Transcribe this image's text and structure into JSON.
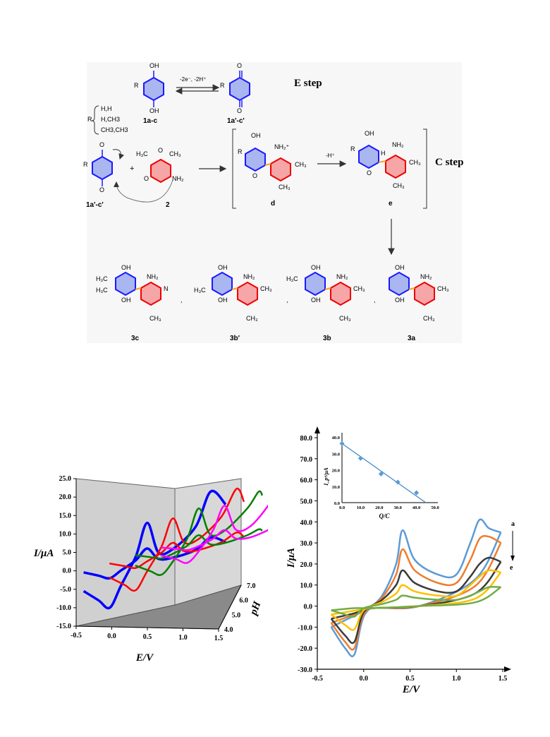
{
  "scheme": {
    "e_step_label": "E step",
    "c_step_label": "C step",
    "arrow_label_e": "-2e⁻, -2H⁺",
    "arrow_label_c": "-H⁺",
    "r_group_prefix": "R",
    "r_groups": [
      "H,H",
      "H,CH3",
      "CH3,CH3"
    ],
    "compound_labels": {
      "c1ac": "1a-c",
      "c1ac_prime": "1a'-c'",
      "c1ac_prime_2": "1a'-c'",
      "c2": "2",
      "cd": "d",
      "ce": "e",
      "c3c": "3c",
      "c3b_prime": "3b'",
      "c3b": "3b",
      "c3a": "3a"
    },
    "atoms": {
      "oh": "OH",
      "o": "O",
      "r": "R",
      "nh2": "NH₂",
      "nh2_plus": "NH₂⁺",
      "h3c": "H₃C",
      "ch3": "CH₃",
      "n": "N",
      "h": "H",
      "plus": "+",
      "sep": ","
    }
  },
  "chart_data": [
    {
      "type": "line",
      "xlabel": "E/V",
      "ylabel": "I/μA",
      "zlabel": "pH",
      "xlim": [
        -0.5,
        1.5
      ],
      "ylim": [
        -15.0,
        25.0
      ],
      "zlim": [
        4.0,
        7.0
      ],
      "x_ticks": [
        "-0.5",
        "0.0",
        "0.5",
        "1.0",
        "1.5"
      ],
      "y_ticks": [
        "25.0",
        "20.0",
        "15.0",
        "10.0",
        "5.0",
        "0.0",
        "-5.0",
        "-10.0",
        "-15.0"
      ],
      "z_ticks": [
        "7.0",
        "6.0",
        "5.0",
        "4.0"
      ],
      "series": [
        {
          "color": "#0000ff",
          "z": 4.0,
          "x": [
            -0.4,
            -0.2,
            -0.05,
            0.1,
            0.3,
            0.45,
            0.6,
            0.8,
            1.1,
            1.3,
            1.5
          ],
          "y": [
            -5.5,
            -8.0,
            -10.0,
            -4.0,
            4.0,
            13.0,
            5.0,
            6.0,
            12.0,
            21.5,
            18.0
          ]
        },
        {
          "color": "#ff0000",
          "z": 5.0,
          "x": [
            -0.3,
            -0.1,
            0.05,
            0.2,
            0.4,
            0.55,
            0.7,
            0.9,
            1.2,
            1.4,
            1.5
          ],
          "y": [
            -3.5,
            -5.5,
            -7.0,
            -2.0,
            5.0,
            12.5,
            6.0,
            7.0,
            13.0,
            20.5,
            17.0
          ]
        },
        {
          "color": "#008000",
          "z": 6.0,
          "x": [
            -0.2,
            0.0,
            0.15,
            0.3,
            0.5,
            0.65,
            0.8,
            1.0,
            1.3,
            1.45,
            1.5
          ],
          "y": [
            -2.0,
            -3.5,
            -4.5,
            -1.0,
            5.5,
            13.5,
            6.5,
            7.5,
            13.5,
            18.0,
            17.0
          ]
        },
        {
          "color": "#ff00ff",
          "z": 7.0,
          "x": [
            -0.1,
            0.1,
            0.25,
            0.4,
            0.6,
            0.75,
            0.9,
            1.1,
            1.35,
            1.45,
            1.5
          ],
          "y": [
            -1.0,
            -2.0,
            -3.0,
            0.0,
            6.0,
            12.5,
            6.0,
            7.0,
            13.0,
            17.0,
            16.0
          ]
        }
      ]
    },
    {
      "type": "line",
      "xlabel": "E/V",
      "ylabel": "I/μA",
      "xlim": [
        -0.5,
        1.5
      ],
      "ylim": [
        -30.0,
        80.0
      ],
      "x_ticks": [
        "-0.5",
        "0.0",
        "0.5",
        "1.0",
        "1.5"
      ],
      "y_ticks": [
        "80.0",
        "70.0",
        "60.0",
        "50.0",
        "40.0",
        "30.0",
        "20.0",
        "10.0",
        "0.0",
        "-10.0",
        "-20.0",
        "-30.0"
      ],
      "curve_labels": [
        "a",
        "e"
      ],
      "series": [
        {
          "color": "#5b9bd5",
          "x": [
            -0.35,
            -0.2,
            -0.1,
            0.0,
            0.2,
            0.35,
            0.42,
            0.55,
            0.8,
            1.0,
            1.15,
            1.25,
            1.35,
            1.48
          ],
          "y": [
            -10.0,
            -20.0,
            -23.0,
            -5.0,
            5.0,
            20.0,
            36.0,
            22.0,
            15.0,
            15.0,
            30.0,
            41.0,
            37.0,
            35.0
          ]
        },
        {
          "color": "#ed7d31",
          "x": [
            -0.35,
            -0.2,
            -0.1,
            0.0,
            0.2,
            0.35,
            0.42,
            0.55,
            0.8,
            1.0,
            1.15,
            1.25,
            1.35,
            1.48
          ],
          "y": [
            -8.0,
            -17.0,
            -20.0,
            -4.0,
            4.0,
            15.0,
            27.0,
            17.0,
            11.0,
            11.0,
            22.0,
            32.0,
            33.0,
            30.0
          ]
        },
        {
          "color": "#3b3b3b",
          "x": [
            -0.35,
            -0.2,
            -0.1,
            0.0,
            0.2,
            0.35,
            0.42,
            0.55,
            0.8,
            1.0,
            1.15,
            1.25,
            1.35,
            1.48
          ],
          "y": [
            -6.0,
            -14.0,
            -17.0,
            -3.0,
            3.0,
            10.0,
            17.0,
            11.0,
            7.0,
            7.0,
            14.0,
            20.0,
            23.0,
            21.0
          ]
        },
        {
          "color": "#ffc000",
          "x": [
            -0.35,
            -0.2,
            -0.1,
            0.0,
            0.2,
            0.35,
            0.42,
            0.55,
            0.8,
            1.0,
            1.15,
            1.25,
            1.35,
            1.48
          ],
          "y": [
            -4.0,
            -9.0,
            -11.0,
            -2.0,
            2.0,
            6.0,
            10.0,
            7.0,
            5.0,
            5.0,
            10.0,
            14.0,
            17.0,
            16.0
          ]
        },
        {
          "color": "#70ad47",
          "x": [
            -0.35,
            -0.2,
            -0.1,
            0.0,
            0.2,
            0.35,
            0.42,
            0.55,
            0.8,
            1.0,
            1.15,
            1.25,
            1.35,
            1.48
          ],
          "y": [
            -2.0,
            -4.0,
            -5.0,
            -1.0,
            1.0,
            3.0,
            5.0,
            4.0,
            3.0,
            3.0,
            5.0,
            7.0,
            9.0,
            9.0
          ]
        }
      ]
    },
    {
      "type": "scatter",
      "xlabel": "Q/C",
      "ylabel": "I_pᵃ/μA",
      "xlim": [
        0.0,
        50.0
      ],
      "ylim": [
        0.0,
        40.0
      ],
      "x_ticks": [
        "0.0",
        "10.0",
        "20.0",
        "30.0",
        "40.0",
        "50.0"
      ],
      "y_ticks": [
        "40.0",
        "30.0",
        "20.0",
        "10.0",
        "0.0"
      ],
      "x": [
        0.0,
        10.0,
        21.0,
        30.0,
        40.0
      ],
      "y": [
        36.0,
        27.0,
        17.5,
        12.5,
        6.0
      ],
      "fit": {
        "x": [
          0.0,
          45.0
        ],
        "y": [
          36.0,
          0.0
        ]
      }
    }
  ]
}
